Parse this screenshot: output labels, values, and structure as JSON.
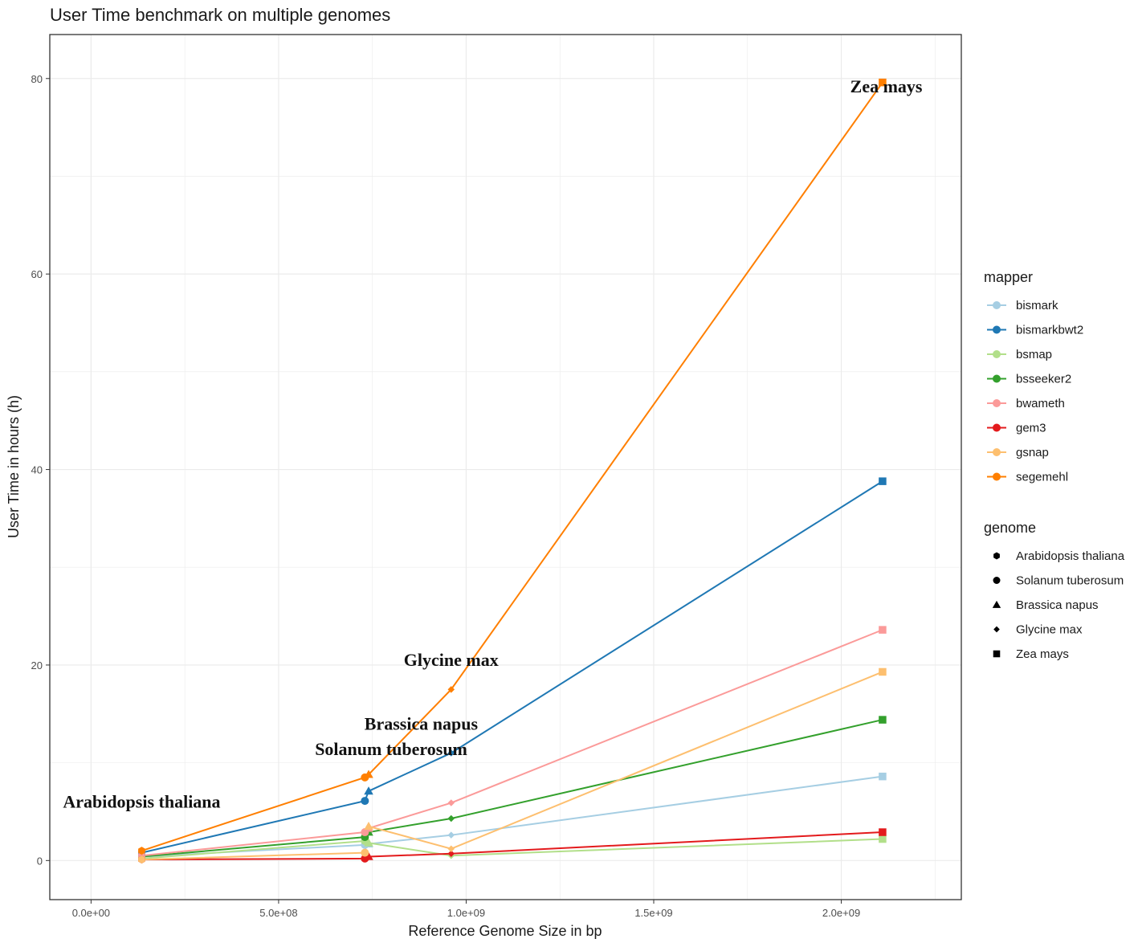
{
  "chart_data": {
    "type": "line",
    "title": "User Time benchmark on multiple genomes",
    "xlabel": "Reference Genome Size in bp",
    "ylabel": "User Time in hours (h)",
    "xlim": [
      -110000000.0,
      2320000000.0
    ],
    "ylim": [
      -4,
      84.5
    ],
    "x_ticks": [
      0,
      500000000,
      1000000000,
      1500000000,
      2000000000
    ],
    "x_tick_labels": [
      "0.0e+00",
      "5.0e+08",
      "1.0e+09",
      "1.5e+09",
      "2.0e+09"
    ],
    "y_ticks": [
      0,
      20,
      40,
      60,
      80
    ],
    "y_tick_labels": [
      "0",
      "20",
      "40",
      "60",
      "80"
    ],
    "grid": true,
    "legend_position": "right",
    "genomes": [
      {
        "name": "Arabidopsis thaliana",
        "size": 135000000,
        "shape": "hexagon"
      },
      {
        "name": "Solanum tuberosum",
        "size": 730000000,
        "shape": "circle"
      },
      {
        "name": "Brassica napus",
        "size": 740000000,
        "shape": "triangle"
      },
      {
        "name": "Glycine max",
        "size": 960000000,
        "shape": "diamond"
      },
      {
        "name": "Zea mays",
        "size": 2110000000,
        "shape": "square"
      }
    ],
    "series": [
      {
        "name": "bismark",
        "color": "#a6cee3",
        "values": [
          0.4,
          1.6,
          1.7,
          2.6,
          8.6
        ]
      },
      {
        "name": "bismarkbwt2",
        "color": "#1f78b4",
        "values": [
          0.8,
          6.1,
          7.1,
          11.0,
          38.8
        ]
      },
      {
        "name": "bsmap",
        "color": "#b2df8a",
        "values": [
          0.2,
          2.0,
          1.8,
          0.5,
          2.2
        ]
      },
      {
        "name": "bsseeker2",
        "color": "#33a02c",
        "values": [
          0.4,
          2.4,
          2.9,
          4.3,
          14.4
        ]
      },
      {
        "name": "bwameth",
        "color": "#fb9a99",
        "values": [
          0.5,
          2.9,
          3.3,
          5.9,
          23.6
        ]
      },
      {
        "name": "gem3",
        "color": "#e31a1c",
        "values": [
          0.1,
          0.2,
          0.4,
          0.7,
          2.9
        ]
      },
      {
        "name": "gsnap",
        "color": "#fdbf6f",
        "values": [
          0.1,
          0.8,
          3.5,
          1.2,
          19.3
        ]
      },
      {
        "name": "segemehl",
        "color": "#ff7f00",
        "values": [
          1.0,
          8.5,
          8.8,
          17.5,
          79.6
        ]
      }
    ],
    "annotations": [
      {
        "text": "Arabidopsis thaliana",
        "x": 135000000,
        "y": 5.4
      },
      {
        "text": "Solanum tuberosum",
        "x": 800000000,
        "y": 10.8
      },
      {
        "text": "Brassica napus",
        "x": 880000000,
        "y": 13.4
      },
      {
        "text": "Glycine max",
        "x": 960000000,
        "y": 19.9
      },
      {
        "text": "Zea mays",
        "x": 2120000000,
        "y": 78.6
      }
    ],
    "legend_mapper_title": "mapper",
    "legend_genome_title": "genome"
  }
}
